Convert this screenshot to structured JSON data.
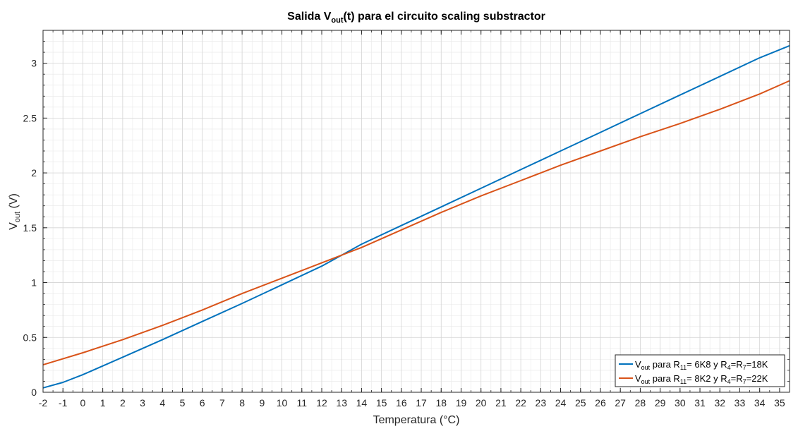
{
  "chart_data": {
    "type": "line",
    "title": {
      "prefix": "Salida V",
      "sub": "out",
      "suffix": "(t) para el circuito scaling substractor"
    },
    "xlabel": "Temperatura (°C)",
    "ylabel": {
      "main": "V",
      "sub": "out",
      "suffix": " (V)"
    },
    "xlim": [
      -2,
      35.5
    ],
    "ylim": [
      0,
      3.3
    ],
    "xticks": [
      -2,
      -1,
      0,
      1,
      2,
      3,
      4,
      5,
      6,
      7,
      8,
      9,
      10,
      11,
      12,
      13,
      14,
      15,
      16,
      17,
      18,
      19,
      20,
      21,
      22,
      23,
      24,
      25,
      26,
      27,
      28,
      29,
      30,
      31,
      32,
      33,
      34,
      35
    ],
    "yticks": [
      0,
      0.5,
      1,
      1.5,
      2,
      2.5,
      3
    ],
    "ytick_labels": [
      "0",
      "0.5",
      "1",
      "1.5",
      "2",
      "2.5",
      "3"
    ],
    "grid": true,
    "minor_grid": true,
    "legend_position": "bottom-right",
    "series": [
      {
        "legend": {
          "a": "V",
          "a_sub": "out",
          "b": " para R",
          "b_sub": "11",
          "c": "= 6K8 y R",
          "c_sub": "4",
          "d": "=R",
          "d_sub": "7",
          "e": "=18K"
        },
        "color": "#0072BD",
        "x": [
          -2,
          -1,
          0,
          2,
          4,
          6,
          8,
          10,
          12,
          14,
          16,
          18,
          20,
          22,
          24,
          26,
          28,
          30,
          32,
          34,
          35.5
        ],
        "y": [
          0.04,
          0.09,
          0.16,
          0.32,
          0.48,
          0.645,
          0.81,
          0.98,
          1.15,
          1.35,
          1.52,
          1.69,
          1.86,
          2.03,
          2.2,
          2.37,
          2.54,
          2.71,
          2.88,
          3.05,
          3.16
        ]
      },
      {
        "legend": {
          "a": "V",
          "a_sub": "out",
          "b": " para R",
          "b_sub": "11",
          "c": "= 8K2 y R",
          "c_sub": "4",
          "d": "=R",
          "d_sub": "7",
          "e": "=22K"
        },
        "color": "#D95319",
        "x": [
          -2,
          0,
          2,
          4,
          6,
          8,
          10,
          12,
          14,
          16,
          18,
          20,
          22,
          24,
          26,
          28,
          30,
          32,
          34,
          35.5
        ],
        "y": [
          0.25,
          0.36,
          0.48,
          0.61,
          0.75,
          0.9,
          1.04,
          1.18,
          1.32,
          1.48,
          1.64,
          1.79,
          1.93,
          2.07,
          2.2,
          2.33,
          2.45,
          2.58,
          2.72,
          2.84
        ]
      }
    ]
  }
}
